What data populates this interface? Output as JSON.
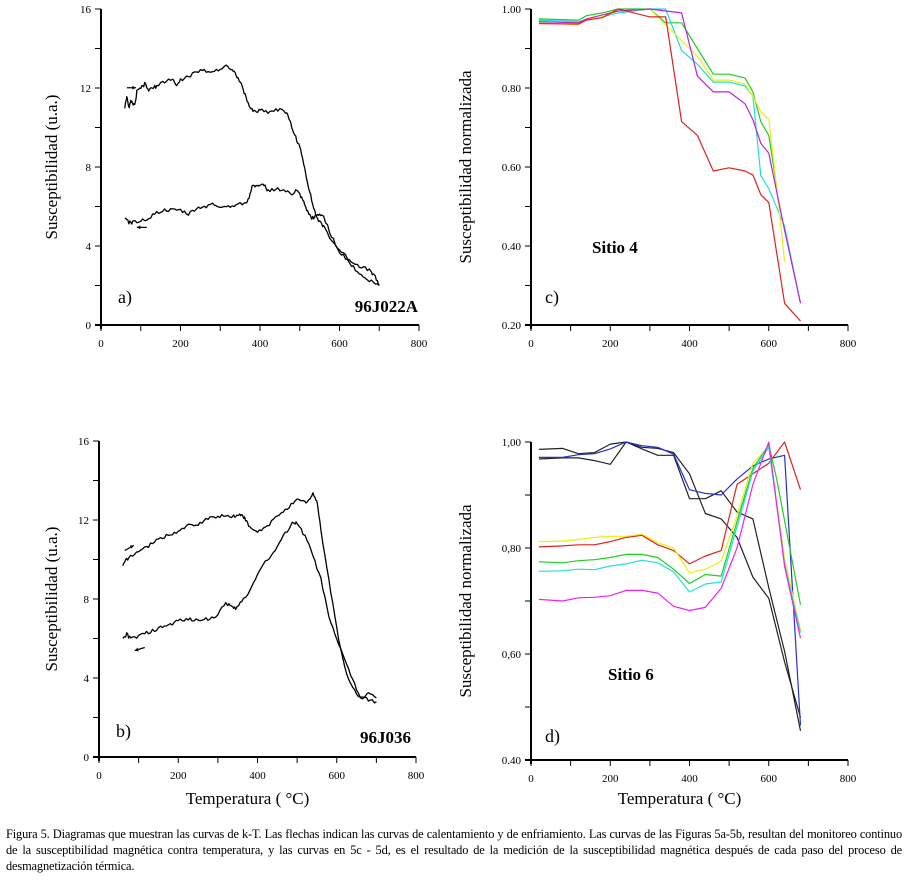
{
  "figure": {
    "caption": "Figura 5. Diagramas que muestran las curvas de k-T. Las flechas indican las curvas de calentamiento y de enfriamiento. Las curvas de las Figuras 5a-5b, resultan del monitoreo continuo de la susceptibilidad magnética contra temperatura, y las curvas en 5c - 5d, es el resultado de la medición de la susceptibilidad magnética después de cada paso del proceso de desmagnetización térmica."
  },
  "chart_data": [
    {
      "id": "a",
      "type": "line",
      "panel_label": "a)",
      "sample_label": "96J022A",
      "xlabel": "",
      "ylabel": "Susceptibilidad (u.a.)",
      "xlim": [
        0,
        800
      ],
      "ylim": [
        0,
        16
      ],
      "xticks": [
        "0",
        "200",
        "400",
        "600",
        "800"
      ],
      "yticks": [
        "0",
        "4",
        "8",
        "12",
        "16"
      ],
      "grid": false,
      "series": [
        {
          "name": "calentamiento",
          "color": "#000000",
          "arrow": "right",
          "x": [
            60,
            65,
            70,
            75,
            80,
            85,
            90,
            100,
            110,
            120,
            130,
            140,
            160,
            180,
            190,
            200,
            220,
            240,
            260,
            280,
            300,
            320,
            330,
            340,
            350,
            360,
            370,
            380,
            390,
            400,
            420,
            440,
            460,
            470,
            480,
            490,
            500,
            510,
            520,
            530,
            540,
            550,
            560,
            580,
            600,
            620,
            640,
            660,
            680,
            690,
            700
          ],
          "y": [
            11.0,
            11.5,
            11.0,
            11.3,
            11.2,
            11.1,
            11.8,
            12.0,
            12.2,
            11.9,
            12.0,
            12.1,
            12.3,
            12.5,
            12.1,
            12.4,
            12.6,
            12.8,
            12.9,
            12.8,
            13.0,
            13.1,
            12.9,
            12.7,
            12.3,
            11.8,
            11.2,
            10.9,
            10.8,
            10.9,
            10.8,
            10.9,
            10.9,
            10.6,
            10.0,
            9.5,
            9.0,
            8.2,
            7.2,
            6.3,
            5.6,
            5.2,
            5.0,
            4.3,
            3.8,
            3.4,
            3.1,
            2.9,
            2.7,
            2.4,
            2.0
          ]
        },
        {
          "name": "enfriamiento",
          "color": "#000000",
          "arrow": "left",
          "x": [
            60,
            70,
            80,
            100,
            120,
            140,
            160,
            180,
            200,
            220,
            240,
            260,
            280,
            300,
            320,
            340,
            360,
            370,
            380,
            390,
            400,
            410,
            420,
            440,
            460,
            480,
            490,
            500,
            510,
            520,
            530,
            540,
            550,
            560,
            580,
            600,
            620,
            640,
            660,
            680,
            700
          ],
          "y": [
            5.4,
            5.2,
            5.2,
            5.3,
            5.4,
            5.7,
            5.8,
            5.8,
            5.8,
            5.6,
            5.9,
            6.0,
            6.1,
            6.0,
            6.0,
            6.1,
            6.2,
            6.3,
            7.0,
            7.1,
            7.0,
            7.1,
            6.8,
            6.9,
            6.8,
            6.6,
            6.8,
            6.6,
            6.2,
            5.7,
            5.4,
            5.5,
            5.6,
            5.5,
            4.5,
            3.7,
            3.3,
            2.8,
            2.4,
            2.2,
            2.0
          ]
        }
      ]
    },
    {
      "id": "b",
      "type": "line",
      "panel_label": "b)",
      "sample_label": "96J036",
      "xlabel": "Temperatura ( °C)",
      "ylabel": "Susceptibilidad (u.a.)",
      "xlim": [
        0,
        800
      ],
      "ylim": [
        0,
        16
      ],
      "xticks": [
        "0",
        "200",
        "400",
        "600",
        "800"
      ],
      "yticks": [
        "0",
        "4",
        "8",
        "12",
        "16"
      ],
      "grid": false,
      "series": [
        {
          "name": "calentamiento",
          "color": "#000000",
          "arrow": "right",
          "x": [
            60,
            70,
            80,
            100,
            120,
            140,
            160,
            180,
            200,
            220,
            240,
            260,
            280,
            300,
            320,
            340,
            350,
            360,
            370,
            380,
            400,
            420,
            440,
            460,
            480,
            500,
            520,
            530,
            540,
            550,
            560,
            580,
            600,
            620,
            640,
            660,
            680,
            700
          ],
          "y": [
            9.7,
            10.0,
            10.2,
            10.4,
            10.6,
            10.9,
            11.1,
            11.3,
            11.4,
            11.7,
            11.7,
            11.9,
            12.1,
            12.2,
            12.2,
            12.2,
            12.2,
            12.3,
            12.0,
            11.6,
            11.4,
            11.6,
            12.0,
            12.4,
            12.7,
            13.0,
            12.9,
            13.0,
            13.3,
            13.0,
            11.5,
            9.0,
            6.5,
            4.5,
            3.5,
            3.0,
            3.2,
            3.0
          ]
        },
        {
          "name": "enfriamiento",
          "color": "#000000",
          "arrow": "left",
          "x": [
            60,
            70,
            80,
            100,
            120,
            140,
            160,
            180,
            200,
            220,
            240,
            260,
            280,
            300,
            320,
            330,
            340,
            350,
            360,
            380,
            400,
            420,
            440,
            460,
            480,
            490,
            500,
            520,
            540,
            560,
            580,
            600,
            620,
            640,
            660,
            680,
            700
          ],
          "y": [
            6.0,
            6.2,
            6.0,
            6.1,
            6.3,
            6.4,
            6.6,
            6.7,
            6.9,
            7.0,
            6.9,
            7.0,
            7.0,
            7.2,
            7.8,
            7.7,
            7.5,
            7.6,
            7.9,
            8.4,
            9.3,
            9.9,
            10.3,
            11.0,
            11.6,
            11.9,
            11.8,
            11.2,
            10.2,
            9.0,
            7.1,
            5.9,
            5.0,
            3.9,
            3.0,
            2.9,
            2.8
          ]
        }
      ]
    },
    {
      "id": "c",
      "type": "line",
      "panel_label": "c)",
      "sample_label": "Sitio 4",
      "xlabel": "",
      "ylabel": "Susceptibilidad normalizada",
      "xlim": [
        0,
        800
      ],
      "ylim": [
        0.2,
        1.0
      ],
      "xticks": [
        "0",
        "200",
        "400",
        "600",
        "800"
      ],
      "yticks": [
        "0.20",
        "0.40",
        "0.60",
        "0.80",
        "1.00"
      ],
      "grid": false,
      "series": [
        {
          "name": "green",
          "color": "#22cc22",
          "x": [
            20,
            120,
            140,
            180,
            220,
            300,
            340,
            380,
            420,
            460,
            500,
            540,
            560,
            580,
            600,
            620
          ],
          "y": [
            0.975,
            0.972,
            0.983,
            0.99,
            1.0,
            1.0,
            0.965,
            0.965,
            0.9,
            0.835,
            0.835,
            0.825,
            0.79,
            0.715,
            0.68,
            0.55
          ]
        },
        {
          "name": "cyan",
          "color": "#22dddd",
          "x": [
            20,
            120,
            180,
            220,
            300,
            340,
            380,
            420,
            460,
            500,
            540,
            560,
            580,
            600,
            640,
            680
          ],
          "y": [
            0.972,
            0.968,
            0.98,
            0.99,
            1.0,
            1.0,
            0.895,
            0.86,
            0.815,
            0.815,
            0.805,
            0.78,
            0.578,
            0.545,
            0.45,
            0.255
          ]
        },
        {
          "name": "yellow",
          "color": "#eeee11",
          "x": [
            20,
            120,
            140,
            180,
            220,
            300,
            340,
            380,
            420,
            460,
            500,
            540,
            560,
            580,
            600,
            620,
            640
          ],
          "y": [
            0.965,
            0.96,
            0.973,
            0.98,
            0.995,
            1.0,
            0.96,
            0.92,
            0.88,
            0.82,
            0.82,
            0.81,
            0.78,
            0.74,
            0.72,
            0.55,
            0.36
          ]
        },
        {
          "name": "magenta",
          "color": "#bb22dd",
          "x": [
            20,
            120,
            140,
            180,
            220,
            300,
            340,
            380,
            420,
            460,
            500,
            540,
            560,
            580,
            600,
            640,
            680
          ],
          "y": [
            0.968,
            0.965,
            0.975,
            0.985,
            0.995,
            1.0,
            0.995,
            0.99,
            0.83,
            0.79,
            0.79,
            0.76,
            0.72,
            0.66,
            0.635,
            0.44,
            0.255
          ]
        },
        {
          "name": "red",
          "color": "#dd2222",
          "x": [
            20,
            120,
            140,
            180,
            220,
            300,
            340,
            380,
            420,
            460,
            500,
            540,
            560,
            580,
            600,
            640,
            680
          ],
          "y": [
            0.963,
            0.962,
            0.972,
            0.978,
            1.0,
            0.98,
            0.98,
            0.715,
            0.68,
            0.59,
            0.598,
            0.59,
            0.58,
            0.53,
            0.51,
            0.255,
            0.21
          ]
        }
      ]
    },
    {
      "id": "d",
      "type": "line",
      "panel_label": "d)",
      "sample_label": "Sitio 6",
      "xlabel": "Temperatura ( °C)",
      "ylabel": "Susceptibilidad normalizada",
      "xlim": [
        0,
        800
      ],
      "ylim": [
        0.4,
        1.0
      ],
      "xticks": [
        "0",
        "200",
        "400",
        "600",
        "800"
      ],
      "yticks": [
        "0.40",
        "0,60",
        "0,80",
        "1,00"
      ],
      "grid": false,
      "series": [
        {
          "name": "black-1",
          "color": "#222222",
          "x": [
            20,
            80,
            120,
            160,
            200,
            240,
            280,
            320,
            360,
            400,
            440,
            480,
            520,
            560,
            600,
            640,
            680
          ],
          "y": [
            0.986,
            0.988,
            0.978,
            0.98,
            0.996,
            1.0,
            0.987,
            0.975,
            0.975,
            0.893,
            0.893,
            0.908,
            0.868,
            0.855,
            0.725,
            0.605,
            0.455
          ]
        },
        {
          "name": "black-2",
          "color": "#222222",
          "x": [
            20,
            80,
            120,
            160,
            200,
            240,
            280,
            320,
            360,
            400,
            440,
            480,
            520,
            560,
            600,
            640,
            680
          ],
          "y": [
            0.968,
            0.97,
            0.97,
            0.965,
            0.958,
            1.0,
            0.99,
            0.988,
            0.98,
            0.94,
            0.865,
            0.855,
            0.82,
            0.745,
            0.705,
            0.585,
            0.48
          ]
        },
        {
          "name": "blue",
          "color": "#2233cc",
          "x": [
            20,
            80,
            120,
            160,
            200,
            240,
            280,
            320,
            360,
            400,
            440,
            480,
            520,
            560,
            600,
            640,
            680
          ],
          "y": [
            0.971,
            0.971,
            0.976,
            0.978,
            0.987,
            1.0,
            0.993,
            0.99,
            0.977,
            0.91,
            0.903,
            0.9,
            0.93,
            0.955,
            0.968,
            0.975,
            0.465
          ]
        },
        {
          "name": "red",
          "color": "#dd2222",
          "x": [
            20,
            80,
            120,
            160,
            200,
            240,
            280,
            320,
            360,
            400,
            440,
            480,
            520,
            560,
            600,
            640,
            680
          ],
          "y": [
            0.802,
            0.804,
            0.806,
            0.806,
            0.812,
            0.82,
            0.824,
            0.806,
            0.795,
            0.77,
            0.785,
            0.795,
            0.92,
            0.94,
            0.96,
            1.0,
            0.91
          ]
        },
        {
          "name": "yellow",
          "color": "#eeee11",
          "x": [
            20,
            80,
            120,
            160,
            200,
            240,
            280,
            320,
            360,
            400,
            440,
            480,
            520,
            560,
            600,
            640,
            680
          ],
          "y": [
            0.812,
            0.813,
            0.816,
            0.82,
            0.822,
            0.822,
            0.826,
            0.81,
            0.8,
            0.753,
            0.76,
            0.775,
            0.86,
            0.96,
            0.99,
            0.78,
            0.645
          ]
        },
        {
          "name": "green",
          "color": "#22cc22",
          "x": [
            20,
            80,
            120,
            160,
            200,
            240,
            280,
            320,
            360,
            400,
            440,
            480,
            520,
            560,
            600,
            620,
            680
          ],
          "y": [
            0.774,
            0.772,
            0.776,
            0.778,
            0.782,
            0.788,
            0.788,
            0.782,
            0.76,
            0.733,
            0.75,
            0.747,
            0.85,
            0.95,
            0.995,
            0.93,
            0.693
          ]
        },
        {
          "name": "cyan",
          "color": "#22dddd",
          "x": [
            20,
            80,
            120,
            160,
            200,
            240,
            280,
            320,
            360,
            400,
            440,
            480,
            520,
            560,
            600,
            640,
            680
          ],
          "y": [
            0.756,
            0.757,
            0.76,
            0.759,
            0.766,
            0.77,
            0.777,
            0.772,
            0.755,
            0.717,
            0.732,
            0.736,
            0.84,
            0.945,
            0.99,
            0.77,
            0.64
          ]
        },
        {
          "name": "magenta",
          "color": "#ee22ee",
          "x": [
            20,
            80,
            120,
            160,
            200,
            240,
            280,
            320,
            360,
            400,
            440,
            480,
            520,
            560,
            600,
            640,
            680
          ],
          "y": [
            0.703,
            0.7,
            0.706,
            0.707,
            0.71,
            0.72,
            0.72,
            0.715,
            0.69,
            0.682,
            0.688,
            0.724,
            0.8,
            0.92,
            1.0,
            0.765,
            0.63
          ]
        }
      ]
    }
  ]
}
